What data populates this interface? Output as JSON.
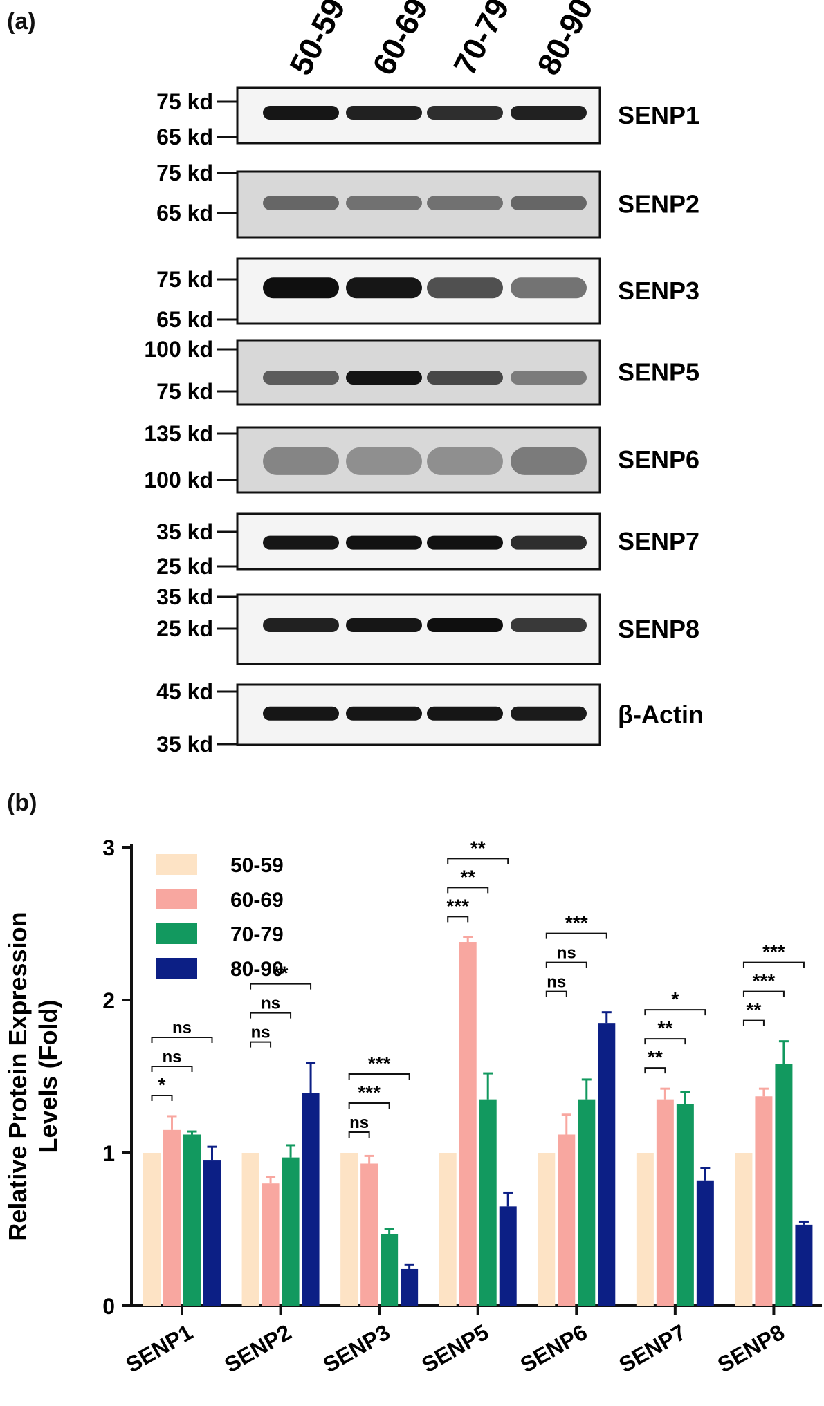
{
  "panel_a": {
    "label": "(a)",
    "age_groups": [
      "50-59",
      "60-69",
      "70-79",
      "80-90"
    ],
    "blots": [
      {
        "protein": "SENP1",
        "markers": [
          "75 kd",
          "65 kd"
        ]
      },
      {
        "protein": "SENP2",
        "markers": [
          "75 kd",
          "65 kd"
        ]
      },
      {
        "protein": "SENP3",
        "markers": [
          "75 kd",
          "65 kd"
        ]
      },
      {
        "protein": "SENP5",
        "markers": [
          "100 kd",
          "75 kd"
        ]
      },
      {
        "protein": "SENP6",
        "markers": [
          "135 kd",
          "100 kd"
        ]
      },
      {
        "protein": "SENP7",
        "markers": [
          "35 kd",
          "25 kd"
        ]
      },
      {
        "protein": "SENP8",
        "markers": [
          "35 kd",
          "25 kd"
        ]
      },
      {
        "protein": "β-Actin",
        "markers": [
          "45 kd",
          "35 kd"
        ]
      }
    ]
  },
  "panel_b": {
    "label": "(b)"
  },
  "chart_data": {
    "type": "bar",
    "ylabel": "Relative Protein Expression Levels (Fold)",
    "ylim": [
      0,
      3
    ],
    "yticks": [
      "0",
      "1",
      "2",
      "3"
    ],
    "categories": [
      "SENP1",
      "SENP2",
      "SENP3",
      "SENP5",
      "SENP6",
      "SENP7",
      "SENP8"
    ],
    "legend_position": "top-left",
    "series": [
      {
        "name": "50-59",
        "color": "#fde3c5",
        "values": [
          1.0,
          1.0,
          1.0,
          1.0,
          1.0,
          1.0,
          1.0
        ],
        "errors": [
          0,
          0,
          0,
          0,
          0,
          0,
          0
        ]
      },
      {
        "name": "60-69",
        "color": "#f8a7a0",
        "values": [
          1.15,
          0.8,
          0.93,
          2.38,
          1.12,
          1.35,
          1.37
        ],
        "errors": [
          0.09,
          0.04,
          0.05,
          0.03,
          0.13,
          0.07,
          0.05
        ]
      },
      {
        "name": "70-79",
        "color": "#12995f",
        "values": [
          1.12,
          0.97,
          0.47,
          1.35,
          1.35,
          1.32,
          1.58
        ],
        "errors": [
          0.02,
          0.08,
          0.03,
          0.17,
          0.13,
          0.08,
          0.15
        ]
      },
      {
        "name": "80-90",
        "color": "#0c1f85",
        "values": [
          0.95,
          1.39,
          0.24,
          0.65,
          1.85,
          0.82,
          0.53
        ],
        "errors": [
          0.09,
          0.2,
          0.03,
          0.09,
          0.07,
          0.08,
          0.02
        ]
      }
    ],
    "significance": [
      [
        {
          "to": 1,
          "label": "*"
        },
        {
          "to": 2,
          "label": "ns"
        },
        {
          "to": 3,
          "label": "ns"
        }
      ],
      [
        {
          "to": 1,
          "label": "ns"
        },
        {
          "to": 2,
          "label": "ns"
        },
        {
          "to": 3,
          "label": "**"
        }
      ],
      [
        {
          "to": 1,
          "label": "ns"
        },
        {
          "to": 2,
          "label": "***"
        },
        {
          "to": 3,
          "label": "***"
        }
      ],
      [
        {
          "to": 1,
          "label": "***"
        },
        {
          "to": 2,
          "label": "**"
        },
        {
          "to": 3,
          "label": "**"
        }
      ],
      [
        {
          "to": 1,
          "label": "ns"
        },
        {
          "to": 2,
          "label": "ns"
        },
        {
          "to": 3,
          "label": "***"
        }
      ],
      [
        {
          "to": 1,
          "label": "**"
        },
        {
          "to": 2,
          "label": "**"
        },
        {
          "to": 3,
          "label": "*"
        }
      ],
      [
        {
          "to": 1,
          "label": "**"
        },
        {
          "to": 2,
          "label": "***"
        },
        {
          "to": 3,
          "label": "***"
        }
      ]
    ]
  }
}
